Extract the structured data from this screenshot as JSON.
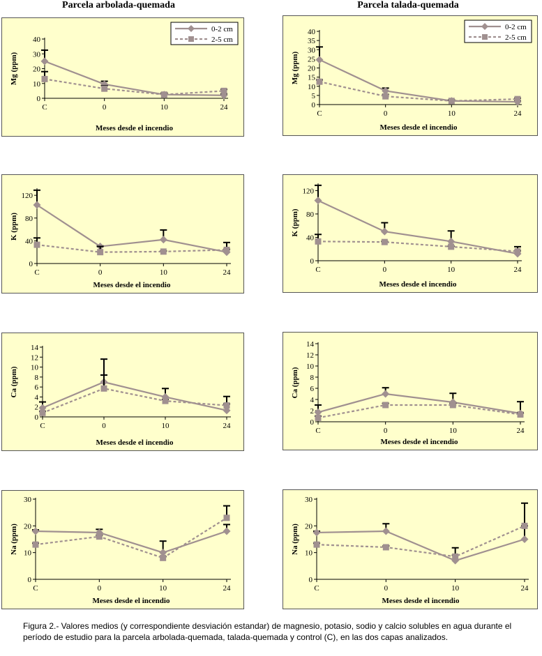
{
  "column_titles": [
    "Parcela arbolada-quemada",
    "Parcela talada-quemada"
  ],
  "caption": "Figura 2.- Valores medios (y correspondiente desviación estandar) de magnesio, potasio, sodio y calcio solubles en agua durante el período de estudio para la parcela arbolada-quemada, talada-quemada y control (C), en las dos capas analizados.",
  "colors": {
    "panel_bg": "#ffffcc",
    "series_solid": "#a09090",
    "series_dashed": "#a09090"
  },
  "chart_data": [
    {
      "type": "line",
      "plot": "arbolada",
      "xlabel": "Meses desde el incendio",
      "ylabel": "Mg (ppm)",
      "categories": [
        "C",
        "0",
        "10",
        "24"
      ],
      "ylim": [
        0,
        40
      ],
      "yticks": [
        0,
        10,
        20,
        30,
        40
      ],
      "legend_position": "top-right",
      "series": [
        {
          "name": "0-2 cm",
          "values": [
            25,
            9.5,
            2.5,
            2
          ],
          "errors": [
            7.5,
            2,
            1,
            1
          ]
        },
        {
          "name": "2-5 cm",
          "values": [
            13,
            6.5,
            2.5,
            5
          ],
          "errors": [
            5,
            2,
            1,
            1
          ]
        }
      ]
    },
    {
      "type": "line",
      "plot": "talada",
      "xlabel": "Meses desde el incendio",
      "ylabel": "Mg (ppm)",
      "categories": [
        "C",
        "0",
        "10",
        "24"
      ],
      "ylim": [
        0,
        40
      ],
      "yticks": [
        0,
        5,
        10,
        15,
        20,
        25,
        30,
        35,
        40
      ],
      "legend_position": "top-right",
      "series": [
        {
          "name": "0-2 cm",
          "values": [
            24.5,
            7.5,
            2,
            1.5
          ],
          "errors": [
            7,
            1.5,
            0.5,
            0.5
          ]
        },
        {
          "name": "2-5 cm",
          "values": [
            12.5,
            4.5,
            2,
            3
          ],
          "errors": [
            1,
            1,
            0.5,
            0.5
          ]
        }
      ]
    },
    {
      "type": "line",
      "plot": "arbolada",
      "xlabel": "Meses desde el incendio",
      "ylabel": "K (ppm)",
      "categories": [
        "C",
        "0",
        "10",
        "24"
      ],
      "ylim": [
        0,
        130
      ],
      "yticks": [
        0,
        40,
        80,
        120
      ],
      "series": [
        {
          "values": [
            103,
            30,
            42,
            20
          ],
          "errors": [
            26,
            1,
            17,
            17
          ]
        },
        {
          "values": [
            33,
            20,
            21,
            24
          ],
          "errors": [
            12,
            10,
            1,
            1
          ]
        }
      ]
    },
    {
      "type": "line",
      "plot": "talada",
      "xlabel": "Meses desde el incendio",
      "ylabel": "K (ppm)",
      "categories": [
        "C",
        "0",
        "10",
        "24"
      ],
      "ylim": [
        0,
        130
      ],
      "yticks": [
        0,
        40,
        80,
        120
      ],
      "series": [
        {
          "values": [
            103,
            50,
            33,
            12
          ],
          "errors": [
            26,
            15,
            18,
            12
          ]
        },
        {
          "values": [
            33,
            32,
            24,
            16
          ],
          "errors": [
            12,
            1,
            1,
            1
          ]
        }
      ]
    },
    {
      "type": "line",
      "plot": "arbolada",
      "xlabel": "Meses desde el incendio",
      "ylabel": "Ca (ppm)",
      "categories": [
        "C",
        "0",
        "10",
        "24"
      ],
      "ylim": [
        0,
        14
      ],
      "yticks": [
        0,
        2,
        4,
        6,
        8,
        10,
        12,
        14
      ],
      "series": [
        {
          "values": [
            1.8,
            7,
            4,
            1.3
          ],
          "errors": [
            1.2,
            4.6,
            1.7,
            2.8
          ]
        },
        {
          "values": [
            0.8,
            5.7,
            3.2,
            2.3
          ],
          "errors": [
            0.3,
            2.7,
            0.3,
            0.3
          ]
        }
      ]
    },
    {
      "type": "line",
      "plot": "talada",
      "xlabel": "Meses desde el incendio",
      "ylabel": "Ca (ppm)",
      "categories": [
        "C",
        "0",
        "10",
        "24"
      ],
      "ylim": [
        0,
        14
      ],
      "yticks": [
        0,
        2,
        4,
        6,
        8,
        10,
        12,
        14
      ],
      "series": [
        {
          "values": [
            1.7,
            5,
            3.5,
            1.5
          ],
          "errors": [
            1.3,
            1.1,
            1.6,
            2.1
          ]
        },
        {
          "values": [
            0.7,
            3,
            3,
            1.3
          ],
          "errors": [
            0.3,
            0.3,
            0.3,
            0.3
          ]
        }
      ]
    },
    {
      "type": "line",
      "plot": "arbolada",
      "xlabel": "Meses desde el incendio",
      "ylabel": "Na (ppm)",
      "categories": [
        "C",
        "0",
        "10",
        "24"
      ],
      "ylim": [
        0,
        30
      ],
      "yticks": [
        0,
        10,
        20,
        30
      ],
      "series": [
        {
          "values": [
            18,
            17.5,
            10,
            18
          ],
          "errors": [
            0.5,
            1.2,
            4.3,
            2.5
          ]
        },
        {
          "values": [
            13,
            16,
            8,
            23
          ],
          "errors": [
            0.5,
            0.5,
            0.5,
            4.5
          ]
        }
      ]
    },
    {
      "type": "line",
      "plot": "talada",
      "xlabel": "Meses desde el incendio",
      "ylabel": "Na (ppm)",
      "categories": [
        "C",
        "0",
        "10",
        "24"
      ],
      "ylim": [
        0,
        30
      ],
      "yticks": [
        0,
        10,
        20,
        30
      ],
      "series": [
        {
          "values": [
            17.5,
            18,
            7,
            15
          ],
          "errors": [
            0.5,
            2.8,
            4.8,
            5
          ]
        },
        {
          "values": [
            13,
            12,
            8.5,
            20
          ],
          "errors": [
            0.5,
            0.5,
            0.5,
            8.5
          ]
        }
      ]
    }
  ]
}
